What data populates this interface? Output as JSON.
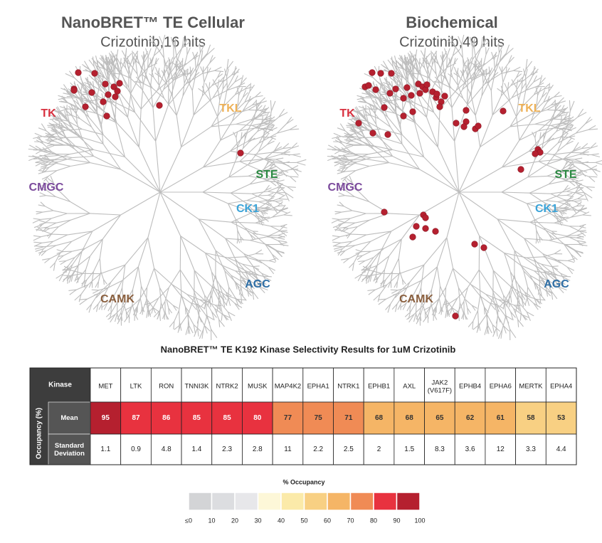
{
  "panels": [
    {
      "title": "NanoBRET™ TE Cellular",
      "subtitle": "Crizotinib,16 hits",
      "groups": [
        "TK",
        "TKL",
        "STE",
        "CK1",
        "AGC",
        "CAMK",
        "CMGC"
      ]
    },
    {
      "title": "Biochemical",
      "subtitle": "Crizotinib,49 hits",
      "groups": [
        "TK",
        "TKL",
        "STE",
        "CK1",
        "AGC",
        "CAMK",
        "CMGC"
      ]
    }
  ],
  "table": {
    "title": "NanoBRET™ TE K192 Kinase Selectivity Results for 1uM Crizotinib",
    "corner": "Kinase",
    "row_group": "Occupancy (%)",
    "row_labels": [
      "Mean",
      "Standard Deviation"
    ],
    "kinases": [
      "MET",
      "LTK",
      "RON",
      "TNNI3K",
      "NTRK2",
      "MUSK",
      "MAP4K2",
      "EPHA1",
      "NTRK1",
      "EPHB1",
      "AXL",
      "JAK2 (V617F)",
      "EPHB4",
      "EPHA6",
      "MERTK",
      "EPHA4"
    ],
    "mean": [
      95,
      87,
      86,
      85,
      85,
      80,
      77,
      75,
      71,
      68,
      68,
      65,
      62,
      61,
      58,
      53
    ],
    "sd": [
      1.1,
      0.9,
      4.8,
      1.4,
      2.3,
      2.8,
      11,
      2.2,
      2.5,
      2,
      1.5,
      8.3,
      3.6,
      12,
      3.3,
      4.4
    ]
  },
  "legend": {
    "title": "% Occupancy",
    "bins": [
      {
        "value": 0,
        "label": "≤0"
      },
      10,
      20,
      30,
      40,
      50,
      60,
      70,
      80,
      90,
      100
    ],
    "colors": [
      "#d3d4d6",
      "#dcdde0",
      "#e7e7ea",
      "#fdf7d8",
      "#fbeaa9",
      "#f8d083",
      "#f5b566",
      "#f08b55",
      "#e8323f",
      "#b5202f"
    ]
  }
}
